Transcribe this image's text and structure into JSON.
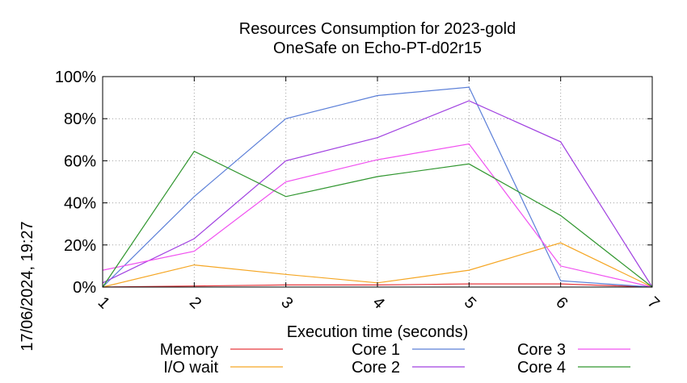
{
  "chart_data": {
    "type": "line",
    "title": "Resources Consumption for 2023-gold",
    "subtitle": "OneSafe on Echo-PT-d02r15",
    "xlabel": "Execution time (seconds)",
    "ylabel": "",
    "timestamp": "17/06/2024, 19:27",
    "x": [
      1,
      2,
      3,
      4,
      5,
      6,
      7
    ],
    "x_ticks": [
      "1",
      "2",
      "3",
      "4",
      "5",
      "6",
      "7"
    ],
    "xlim": [
      1,
      7
    ],
    "ylim": [
      0,
      100
    ],
    "y_ticks": [
      "0%",
      "20%",
      "40%",
      "60%",
      "80%",
      "100%"
    ],
    "y_tick_values": [
      0,
      20,
      40,
      60,
      80,
      100
    ],
    "grid": true,
    "legend_position": "bottom",
    "series": [
      {
        "name": "Memory",
        "color": "#e8393f",
        "values": [
          0,
          0.5,
          1,
          1,
          1.5,
          1.5,
          0
        ]
      },
      {
        "name": "I/O wait",
        "color": "#f5a623",
        "values": [
          0,
          10.5,
          6,
          2,
          8,
          21,
          0
        ]
      },
      {
        "name": "Core 1",
        "color": "#5b7fd8",
        "values": [
          0,
          43,
          80,
          91,
          95,
          3,
          0
        ]
      },
      {
        "name": "Core 2",
        "color": "#a040e0",
        "values": [
          2,
          23,
          60,
          71,
          88.5,
          69,
          0
        ]
      },
      {
        "name": "Core 3",
        "color": "#f050f0",
        "values": [
          8,
          17,
          50,
          60.5,
          68,
          10,
          0
        ]
      },
      {
        "name": "Core 4",
        "color": "#30962f",
        "values": [
          0,
          64.5,
          43,
          52.5,
          58.5,
          34,
          0
        ]
      }
    ]
  }
}
